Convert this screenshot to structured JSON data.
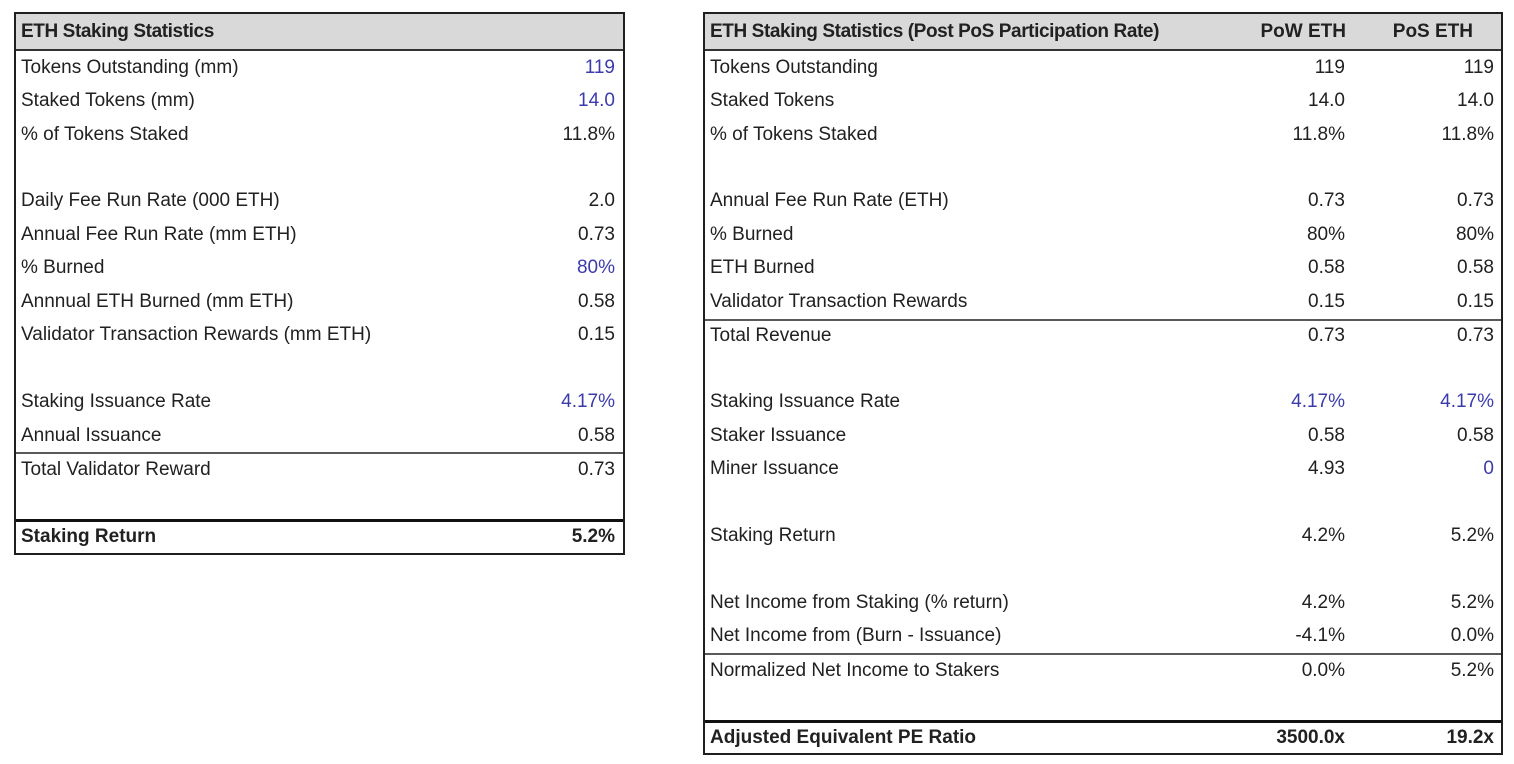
{
  "colors": {
    "input_blue": "#3b3bad",
    "text_black": "#212121",
    "header_gray": "#d9d9d9"
  },
  "left_table": {
    "title": "ETH Staking Statistics",
    "rows": [
      {
        "label": "Tokens Outstanding (mm)",
        "value": "119"
      },
      {
        "label": "Staked Tokens (mm)",
        "value": "14.0"
      },
      {
        "label": "% of Tokens Staked",
        "value": "11.8%"
      },
      {
        "label": "",
        "value": ""
      },
      {
        "label": "Daily Fee Run Rate (000 ETH)",
        "value": "2.0"
      },
      {
        "label": "Annual Fee Run Rate (mm ETH)",
        "value": "0.73"
      },
      {
        "label": "% Burned",
        "value": "80%"
      },
      {
        "label": "Annnual ETH Burned (mm ETH)",
        "value": "0.58"
      },
      {
        "label": "Validator Transaction Rewards (mm ETH)",
        "value": "0.15"
      },
      {
        "label": "",
        "value": ""
      },
      {
        "label": "Staking Issuance Rate",
        "value": "4.17%"
      },
      {
        "label": "Annual Issuance",
        "value": "0.58"
      },
      {
        "label": "Total Validator Reward",
        "value": "0.73"
      },
      {
        "label": "",
        "value": ""
      },
      {
        "label": "Staking Return",
        "value": "5.2%"
      }
    ]
  },
  "right_table": {
    "title": "ETH Staking Statistics (Post PoS Participation Rate)",
    "columns": [
      "PoW ETH",
      "PoS ETH"
    ],
    "rows": [
      {
        "label": "Tokens Outstanding",
        "pow": "119",
        "pos": "119"
      },
      {
        "label": "Staked Tokens",
        "pow": "14.0",
        "pos": "14.0"
      },
      {
        "label": "% of Tokens Staked",
        "pow": "11.8%",
        "pos": "11.8%"
      },
      {
        "label": "",
        "pow": "",
        "pos": ""
      },
      {
        "label": "Annual Fee Run Rate (ETH)",
        "pow": "0.73",
        "pos": "0.73"
      },
      {
        "label": "% Burned",
        "pow": "80%",
        "pos": "80%"
      },
      {
        "label": "ETH Burned",
        "pow": "0.58",
        "pos": "0.58"
      },
      {
        "label": "Validator Transaction Rewards",
        "pow": "0.15",
        "pos": "0.15"
      },
      {
        "label": "Total Revenue",
        "pow": "0.73",
        "pos": "0.73"
      },
      {
        "label": "",
        "pow": "",
        "pos": ""
      },
      {
        "label": "Staking Issuance Rate",
        "pow": "4.17%",
        "pos": "4.17%"
      },
      {
        "label": "Staker Issuance",
        "pow": "0.58",
        "pos": "0.58"
      },
      {
        "label": "Miner Issuance",
        "pow": "4.93",
        "pos": "0"
      },
      {
        "label": "",
        "pow": "",
        "pos": ""
      },
      {
        "label": "Staking Return",
        "pow": "4.2%",
        "pos": "5.2%"
      },
      {
        "label": "",
        "pow": "",
        "pos": ""
      },
      {
        "label": "Net Income from Staking (% return)",
        "pow": "4.2%",
        "pos": "5.2%"
      },
      {
        "label": "Net Income from (Burn - Issuance)",
        "pow": "-4.1%",
        "pos": "0.0%"
      },
      {
        "label": "Normalized Net Income to Stakers",
        "pow": "0.0%",
        "pos": "5.2%"
      },
      {
        "label": "",
        "pow": "",
        "pos": ""
      },
      {
        "label": "Adjusted Equivalent PE Ratio",
        "pow": "3500.0x",
        "pos": "19.2x"
      }
    ]
  }
}
